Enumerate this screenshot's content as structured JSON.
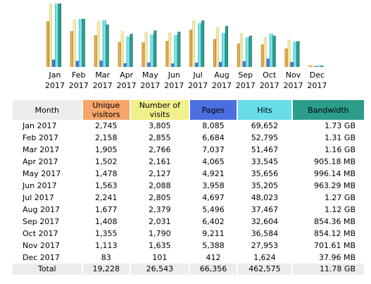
{
  "colors": {
    "visitors": "#e8a23c",
    "visits": "#eee89a",
    "pages": "#3a5fd6",
    "hits": "#4fd7df",
    "bandwidth": "#1c8c7a",
    "header_gray": "#ececec"
  },
  "chart_data": {
    "type": "bar",
    "categories": [
      "Jan 2017",
      "Feb 2017",
      "Mar 2017",
      "Apr 2017",
      "May 2017",
      "Jun 2017",
      "Jul 2017",
      "Aug 2017",
      "Sep 2017",
      "Oct 2017",
      "Nov 2017",
      "Dec 2017"
    ],
    "category_lines": [
      [
        "Jan",
        "2017"
      ],
      [
        "Feb",
        "2017"
      ],
      [
        "Mar",
        "2017"
      ],
      [
        "Apr",
        "2017"
      ],
      [
        "May",
        "2017"
      ],
      [
        "Jun",
        "2017"
      ],
      [
        "Jul",
        "2017"
      ],
      [
        "Aug",
        "2017"
      ],
      [
        "Sep",
        "2017"
      ],
      [
        "Oct",
        "2017"
      ],
      [
        "Nov",
        "2017"
      ],
      [
        "Dec",
        "2017"
      ]
    ],
    "series": [
      {
        "name": "Unique visitors",
        "color": "#e8a23c",
        "values": [
          2745,
          2158,
          1905,
          1502,
          1478,
          1563,
          2241,
          1677,
          1408,
          1355,
          1113,
          83
        ]
      },
      {
        "name": "Number of visits",
        "color": "#eee89a",
        "values": [
          3805,
          2855,
          2766,
          2161,
          2127,
          2088,
          2805,
          2379,
          2031,
          1790,
          1635,
          101
        ]
      },
      {
        "name": "Pages",
        "color": "#3a5fd6",
        "values": [
          8085,
          6684,
          7037,
          4065,
          4921,
          3958,
          4697,
          5496,
          6402,
          9211,
          5388,
          412
        ]
      },
      {
        "name": "Hits",
        "color": "#4fd7df",
        "values": [
          69652,
          52795,
          51467,
          33545,
          35656,
          35205,
          48023,
          37467,
          32604,
          36584,
          27953,
          1624
        ]
      },
      {
        "name": "Bandwidth",
        "color": "#1c8c7a",
        "values": [
          1.73,
          1.31,
          1.16,
          0.905,
          0.996,
          0.963,
          1.27,
          1.12,
          0.854,
          0.854,
          0.702,
          0.038
        ]
      }
    ],
    "grouping": "visitors and visits share one scale; pages and hits share one scale; bandwidth has its own scale"
  },
  "table": {
    "headers": {
      "month": "Month",
      "visitors": [
        "Unique",
        "visitors"
      ],
      "visits": [
        "Number of",
        "visits"
      ],
      "pages": "Pages",
      "hits": "Hits",
      "bandwidth": "Bandwidth"
    },
    "rows": [
      {
        "month": "Jan 2017",
        "visitors": "2,745",
        "visits": "3,805",
        "pages": "8,085",
        "hits": "69,652",
        "bandwidth": "1.73 GB"
      },
      {
        "month": "Feb 2017",
        "visitors": "2,158",
        "visits": "2,855",
        "pages": "6,684",
        "hits": "52,795",
        "bandwidth": "1.31 GB"
      },
      {
        "month": "Mar 2017",
        "visitors": "1,905",
        "visits": "2,766",
        "pages": "7,037",
        "hits": "51,467",
        "bandwidth": "1.16 GB"
      },
      {
        "month": "Apr 2017",
        "visitors": "1,502",
        "visits": "2,161",
        "pages": "4,065",
        "hits": "33,545",
        "bandwidth": "905.18 MB"
      },
      {
        "month": "May 2017",
        "visitors": "1,478",
        "visits": "2,127",
        "pages": "4,921",
        "hits": "35,656",
        "bandwidth": "996.14 MB"
      },
      {
        "month": "Jun 2017",
        "visitors": "1,563",
        "visits": "2,088",
        "pages": "3,958",
        "hits": "35,205",
        "bandwidth": "963.29 MB"
      },
      {
        "month": "Jul 2017",
        "visitors": "2,241",
        "visits": "2,805",
        "pages": "4,697",
        "hits": "48,023",
        "bandwidth": "1.27 GB"
      },
      {
        "month": "Aug 2017",
        "visitors": "1,677",
        "visits": "2,379",
        "pages": "5,496",
        "hits": "37,467",
        "bandwidth": "1.12 GB"
      },
      {
        "month": "Sep 2017",
        "visitors": "1,408",
        "visits": "2,031",
        "pages": "6,402",
        "hits": "32,604",
        "bandwidth": "854.36 MB"
      },
      {
        "month": "Oct 2017",
        "visitors": "1,355",
        "visits": "1,790",
        "pages": "9,211",
        "hits": "36,584",
        "bandwidth": "854.12 MB"
      },
      {
        "month": "Nov 2017",
        "visitors": "1,113",
        "visits": "1,635",
        "pages": "5,388",
        "hits": "27,953",
        "bandwidth": "701.61 MB"
      },
      {
        "month": "Dec 2017",
        "visitors": "83",
        "visits": "101",
        "pages": "412",
        "hits": "1,624",
        "bandwidth": "37.96 MB"
      }
    ],
    "total": {
      "month": "Total",
      "visitors": "19,228",
      "visits": "26,543",
      "pages": "66,356",
      "hits": "462,575",
      "bandwidth": "11.78 GB"
    }
  }
}
